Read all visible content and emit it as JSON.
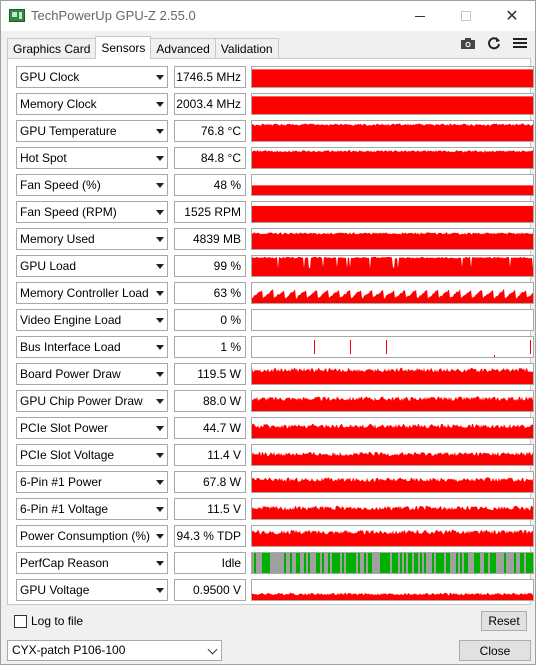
{
  "window": {
    "title": "TechPowerUp GPU-Z 2.55.0",
    "minimize_icon": "minimize-icon",
    "maximize_icon": "maximize-icon",
    "close_icon": "close-icon"
  },
  "tabs": [
    {
      "label": "Graphics Card",
      "active": false
    },
    {
      "label": "Sensors",
      "active": true
    },
    {
      "label": "Advanced",
      "active": false
    },
    {
      "label": "Validation",
      "active": false
    }
  ],
  "toolbar": {
    "icons": [
      "camera-icon",
      "refresh-icon",
      "menu-icon"
    ]
  },
  "colors": {
    "graph_red": "#ff0000",
    "perfcap_green": "#00b000",
    "perfcap_gray": "#a0a0a0"
  },
  "sensors": [
    {
      "name": "GPU Clock",
      "value": "1746.5 MHz",
      "graph": "flat",
      "level": 0.88
    },
    {
      "name": "Memory Clock",
      "value": "2003.4 MHz",
      "graph": "flat",
      "level": 0.88
    },
    {
      "name": "GPU Temperature",
      "value": "76.8 °C",
      "graph": "noisy",
      "level": 0.82
    },
    {
      "name": "Hot Spot",
      "value": "84.8 °C",
      "graph": "noisy",
      "level": 0.84
    },
    {
      "name": "Fan Speed (%)",
      "value": "48 %",
      "graph": "flat",
      "level": 0.48
    },
    {
      "name": "Fan Speed (RPM)",
      "value": "1525 RPM",
      "graph": "flat",
      "level": 0.8
    },
    {
      "name": "Memory Used",
      "value": "4839 MB",
      "graph": "noisy",
      "level": 0.78
    },
    {
      "name": "GPU Load",
      "value": "99 %",
      "graph": "spiky-down",
      "level": 0.92
    },
    {
      "name": "Memory Controller Load",
      "value": "63 %",
      "graph": "sawtooth",
      "level": 0.63
    },
    {
      "name": "Video Engine Load",
      "value": "0 %",
      "graph": "empty",
      "level": 0
    },
    {
      "name": "Bus Interface Load",
      "value": "1 %",
      "graph": "rare-spikes",
      "level": 0.01
    },
    {
      "name": "Board Power Draw",
      "value": "119.5 W",
      "graph": "rough",
      "level": 0.7
    },
    {
      "name": "GPU Chip Power Draw",
      "value": "88.0 W",
      "graph": "rough",
      "level": 0.62
    },
    {
      "name": "PCIe Slot Power",
      "value": "44.7 W",
      "graph": "rough",
      "level": 0.6
    },
    {
      "name": "PCIe Slot Voltage",
      "value": "11.4 V",
      "graph": "rough",
      "level": 0.55
    },
    {
      "name": "6-Pin #1 Power",
      "value": "67.8 W",
      "graph": "rough",
      "level": 0.62
    },
    {
      "name": "6-Pin #1 Voltage",
      "value": "11.5 V",
      "graph": "rough",
      "level": 0.55
    },
    {
      "name": "Power Consumption (%)",
      "value": "94.3 % TDP",
      "graph": "rough",
      "level": 0.7
    },
    {
      "name": "PerfCap Reason",
      "value": "Idle",
      "graph": "perfcap",
      "level": 1
    },
    {
      "name": "GPU Voltage",
      "value": "0.9500 V",
      "graph": "low-rough",
      "level": 0.3
    }
  ],
  "footer": {
    "log_to_file": "Log to file",
    "log_checked": false,
    "reset_label": "Reset",
    "gpu_selected": "CYX-patch P106-100",
    "close_label": "Close"
  }
}
